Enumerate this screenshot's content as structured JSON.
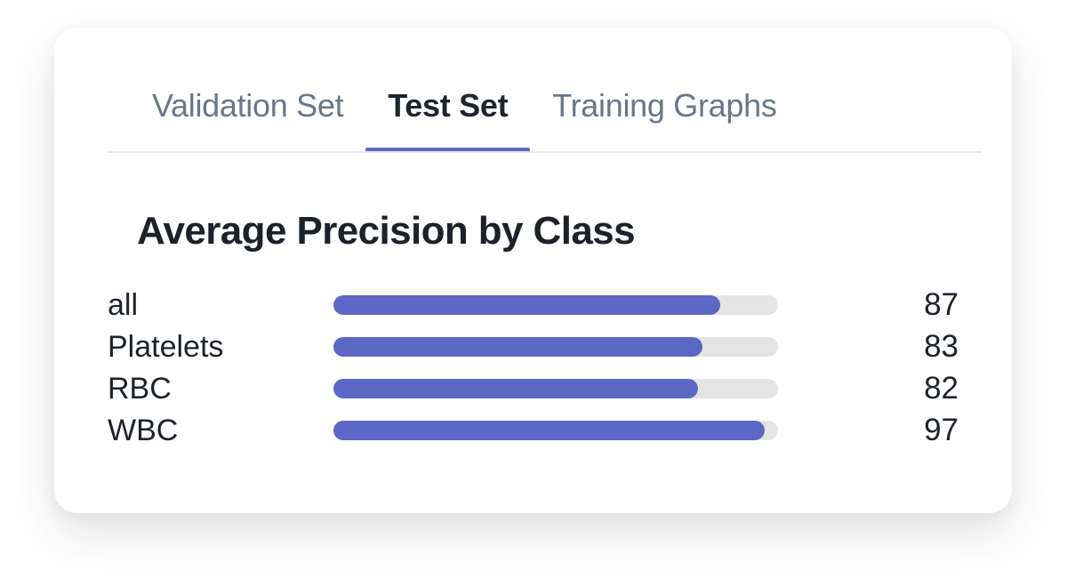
{
  "tabs": {
    "items": [
      {
        "label": "Validation Set",
        "active": false
      },
      {
        "label": "Test Set",
        "active": true
      },
      {
        "label": "Training Graphs",
        "active": false
      }
    ]
  },
  "chart_data": {
    "type": "bar",
    "orientation": "horizontal",
    "title": "Average Precision by Class",
    "categories": [
      "all",
      "Platelets",
      "RBC",
      "WBC"
    ],
    "values": [
      87,
      83,
      82,
      97
    ],
    "xlim": [
      0,
      100
    ],
    "value_labels_shown": true,
    "grid": false,
    "legend": "none"
  },
  "colors": {
    "accent": "#5b68c6",
    "track": "#e4e4e4",
    "tab_inactive": "#68768a",
    "tab_active": "#20252d",
    "text": "#1d222a",
    "divider": "#e6e8ec"
  }
}
